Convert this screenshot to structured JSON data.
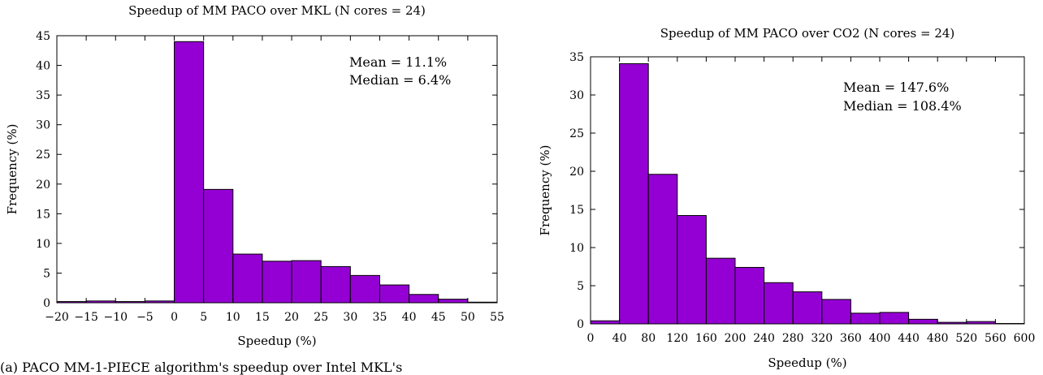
{
  "chart_data": [
    {
      "type": "bar",
      "title": "Speedup of MM PACO over MKL (N cores = 24)",
      "xlabel": "Speedup (%)",
      "ylabel": "Frequency (%)",
      "xlim": [
        -20,
        55
      ],
      "ylim": [
        0,
        45
      ],
      "xticks": [
        -20,
        -15,
        -10,
        -5,
        0,
        5,
        10,
        15,
        20,
        25,
        30,
        35,
        40,
        45,
        50,
        55
      ],
      "yticks": [
        0,
        5,
        10,
        15,
        20,
        25,
        30,
        35,
        40,
        45
      ],
      "bin_width": 5,
      "bins": [
        {
          "x0": -20,
          "x1": -15,
          "value": 0.2
        },
        {
          "x0": -15,
          "x1": -10,
          "value": 0.3
        },
        {
          "x0": -10,
          "x1": -5,
          "value": 0.2
        },
        {
          "x0": -5,
          "x1": 0,
          "value": 0.3
        },
        {
          "x0": 0,
          "x1": 5,
          "value": 44.0
        },
        {
          "x0": 5,
          "x1": 10,
          "value": 19.1
        },
        {
          "x0": 10,
          "x1": 15,
          "value": 8.2
        },
        {
          "x0": 15,
          "x1": 20,
          "value": 7.0
        },
        {
          "x0": 20,
          "x1": 25,
          "value": 7.1
        },
        {
          "x0": 25,
          "x1": 30,
          "value": 6.1
        },
        {
          "x0": 30,
          "x1": 35,
          "value": 4.6
        },
        {
          "x0": 35,
          "x1": 40,
          "value": 3.0
        },
        {
          "x0": 40,
          "x1": 45,
          "value": 1.4
        },
        {
          "x0": 45,
          "x1": 50,
          "value": 0.6
        },
        {
          "x0": 50,
          "x1": 55,
          "value": 0.1
        }
      ],
      "annotations": [
        "Mean = 11.1%",
        "Median = 6.4%"
      ],
      "bar_color": "#9400D3",
      "grid": false
    },
    {
      "type": "bar",
      "title": "Speedup of MM PACO over CO2 (N cores = 24)",
      "xlabel": "Speedup (%)",
      "ylabel": "Frequency (%)",
      "xlim": [
        0,
        600
      ],
      "ylim": [
        0,
        35
      ],
      "xticks": [
        0,
        40,
        80,
        120,
        160,
        200,
        240,
        280,
        320,
        360,
        400,
        440,
        480,
        520,
        560,
        600
      ],
      "yticks": [
        0,
        5,
        10,
        15,
        20,
        25,
        30,
        35
      ],
      "bin_width": 40,
      "bins": [
        {
          "x0": 0,
          "x1": 40,
          "value": 0.4
        },
        {
          "x0": 40,
          "x1": 80,
          "value": 34.1
        },
        {
          "x0": 80,
          "x1": 120,
          "value": 19.6
        },
        {
          "x0": 120,
          "x1": 160,
          "value": 14.2
        },
        {
          "x0": 160,
          "x1": 200,
          "value": 8.6
        },
        {
          "x0": 200,
          "x1": 240,
          "value": 7.4
        },
        {
          "x0": 240,
          "x1": 280,
          "value": 5.4
        },
        {
          "x0": 280,
          "x1": 320,
          "value": 4.2
        },
        {
          "x0": 320,
          "x1": 360,
          "value": 3.2
        },
        {
          "x0": 360,
          "x1": 400,
          "value": 1.4
        },
        {
          "x0": 400,
          "x1": 440,
          "value": 1.5
        },
        {
          "x0": 440,
          "x1": 480,
          "value": 0.6
        },
        {
          "x0": 480,
          "x1": 520,
          "value": 0.2
        },
        {
          "x0": 520,
          "x1": 560,
          "value": 0.3
        },
        {
          "x0": 560,
          "x1": 600,
          "value": 0.05
        }
      ],
      "annotations": [
        "Mean = 147.6%",
        "Median = 108.4%"
      ],
      "bar_color": "#9400D3",
      "grid": false
    }
  ],
  "caption": "(a) PACO MM-1-PIECE algorithm's speedup over Intel MKL's"
}
